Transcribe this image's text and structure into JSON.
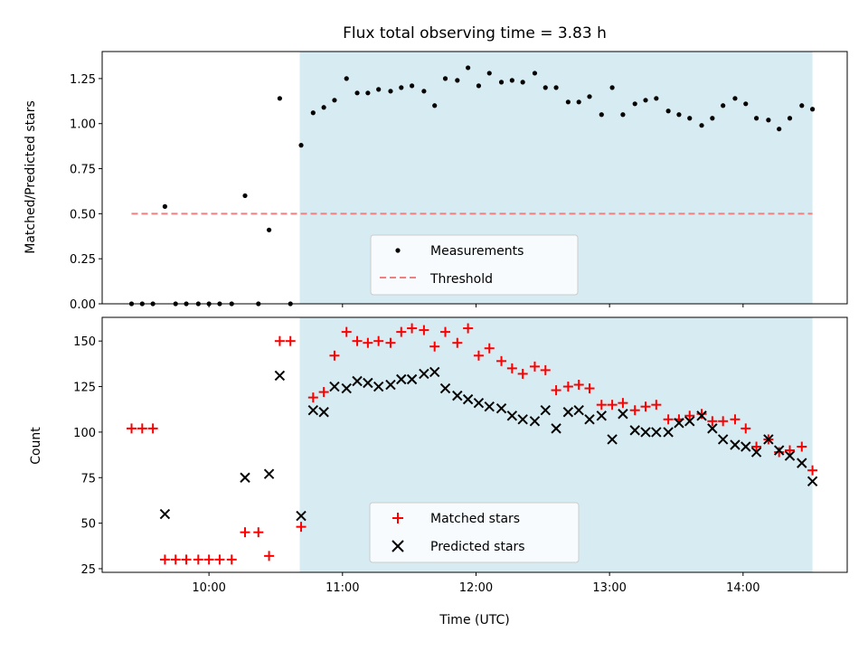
{
  "colors": {
    "shade": "#add8e6",
    "threshold": "#f08080",
    "measure": "#000000",
    "matched": "#ff0000",
    "predicted": "#000000"
  },
  "chart_data": [
    {
      "type": "scatter",
      "title": "Flux total observing time = 3.83 h",
      "ylabel": "Matched/Predicted stars",
      "xlabel": "",
      "xlim": [
        9.2,
        14.78
      ],
      "ylim": [
        0.0,
        1.4
      ],
      "ytick_values": [
        0.0,
        0.25,
        0.5,
        0.75,
        1.0,
        1.25
      ],
      "ytick_labels": [
        "0.00",
        "0.25",
        "0.50",
        "0.75",
        "1.00",
        "1.25"
      ],
      "xtick_values": [
        10,
        11,
        12,
        13,
        14
      ],
      "shaded_span": [
        10.68,
        14.52
      ],
      "threshold": {
        "name": "Threshold",
        "value": 0.5,
        "x_range": [
          9.42,
          14.52
        ]
      },
      "series": [
        {
          "name": "Measurements",
          "x": [
            9.42,
            9.5,
            9.58,
            9.67,
            9.75,
            9.83,
            9.92,
            10.0,
            10.08,
            10.17,
            10.27,
            10.37,
            10.45,
            10.53,
            10.61,
            10.69,
            10.78,
            10.86,
            10.94,
            11.03,
            11.11,
            11.19,
            11.27,
            11.36,
            11.44,
            11.52,
            11.61,
            11.69,
            11.77,
            11.86,
            11.94,
            12.02,
            12.1,
            12.19,
            12.27,
            12.35,
            12.44,
            12.52,
            12.6,
            12.69,
            12.77,
            12.85,
            12.94,
            13.02,
            13.1,
            13.19,
            13.27,
            13.35,
            13.44,
            13.52,
            13.6,
            13.69,
            13.77,
            13.85,
            13.94,
            14.02,
            14.1,
            14.19,
            14.27,
            14.35,
            14.44,
            14.52
          ],
          "y": [
            0.0,
            0.0,
            0.0,
            0.54,
            0.0,
            0.0,
            0.0,
            0.0,
            0.0,
            0.0,
            0.6,
            0.0,
            0.41,
            1.14,
            0.0,
            0.88,
            1.06,
            1.09,
            1.13,
            1.25,
            1.17,
            1.17,
            1.19,
            1.18,
            1.2,
            1.21,
            1.18,
            1.1,
            1.25,
            1.24,
            1.31,
            1.21,
            1.28,
            1.23,
            1.24,
            1.23,
            1.28,
            1.2,
            1.2,
            1.12,
            1.12,
            1.15,
            1.05,
            1.2,
            1.05,
            1.11,
            1.13,
            1.14,
            1.07,
            1.05,
            1.03,
            0.99,
            1.03,
            1.1,
            1.14,
            1.11,
            1.03,
            1.02,
            0.97,
            1.03,
            1.1,
            1.08
          ]
        }
      ],
      "legend": {
        "position": "lower-center",
        "entries": [
          "Measurements",
          "Threshold"
        ]
      }
    },
    {
      "type": "scatter",
      "title": "",
      "ylabel": "Count",
      "xlabel": "Time (UTC)",
      "xlim": [
        9.2,
        14.78
      ],
      "ylim": [
        23,
        163
      ],
      "ytick_values": [
        25,
        50,
        75,
        100,
        125,
        150
      ],
      "ytick_labels": [
        "25",
        "50",
        "75",
        "100",
        "125",
        "150"
      ],
      "xtick_values": [
        10,
        11,
        12,
        13,
        14
      ],
      "xtick_labels": [
        "10:00",
        "11:00",
        "12:00",
        "13:00",
        "14:00"
      ],
      "shaded_span": [
        10.68,
        14.52
      ],
      "series": [
        {
          "name": "Matched stars",
          "marker": "plus",
          "x": [
            9.42,
            9.5,
            9.58,
            9.67,
            9.75,
            9.83,
            9.92,
            10.0,
            10.08,
            10.17,
            10.27,
            10.37,
            10.45,
            10.53,
            10.61,
            10.69,
            10.78,
            10.86,
            10.94,
            11.03,
            11.11,
            11.19,
            11.27,
            11.36,
            11.44,
            11.52,
            11.61,
            11.69,
            11.77,
            11.86,
            11.94,
            12.02,
            12.1,
            12.19,
            12.27,
            12.35,
            12.44,
            12.52,
            12.6,
            12.69,
            12.77,
            12.85,
            12.94,
            13.02,
            13.1,
            13.19,
            13.27,
            13.35,
            13.44,
            13.52,
            13.6,
            13.69,
            13.77,
            13.85,
            13.94,
            14.02,
            14.1,
            14.19,
            14.27,
            14.35,
            14.44,
            14.52
          ],
          "y": [
            102,
            102,
            102,
            30,
            30,
            30,
            30,
            30,
            30,
            30,
            45,
            45,
            32,
            150,
            150,
            48,
            119,
            122,
            142,
            155,
            150,
            149,
            150,
            149,
            155,
            157,
            156,
            147,
            155,
            149,
            157,
            142,
            146,
            139,
            135,
            132,
            136,
            134,
            123,
            125,
            126,
            124,
            115,
            115,
            116,
            112,
            114,
            115,
            107,
            107,
            109,
            110,
            106,
            106,
            107,
            102,
            92,
            96,
            89,
            90,
            92,
            79
          ]
        },
        {
          "name": "Predicted stars",
          "marker": "x",
          "x": [
            9.67,
            10.27,
            10.45,
            10.53,
            10.69,
            10.78,
            10.86,
            10.94,
            11.03,
            11.11,
            11.19,
            11.27,
            11.36,
            11.44,
            11.52,
            11.61,
            11.69,
            11.77,
            11.86,
            11.94,
            12.02,
            12.1,
            12.19,
            12.27,
            12.35,
            12.44,
            12.52,
            12.6,
            12.69,
            12.77,
            12.85,
            12.94,
            13.02,
            13.1,
            13.19,
            13.27,
            13.35,
            13.44,
            13.52,
            13.6,
            13.69,
            13.77,
            13.85,
            13.94,
            14.02,
            14.1,
            14.19,
            14.27,
            14.35,
            14.44,
            14.52
          ],
          "y": [
            55,
            75,
            77,
            131,
            54,
            112,
            111,
            125,
            124,
            128,
            127,
            125,
            126,
            129,
            129,
            132,
            133,
            124,
            120,
            118,
            116,
            114,
            113,
            109,
            107,
            106,
            112,
            102,
            111,
            112,
            107,
            109,
            96,
            110,
            101,
            100,
            100,
            100,
            105,
            106,
            109,
            102,
            96,
            93,
            92,
            89,
            96,
            90,
            87,
            83,
            73
          ]
        }
      ],
      "legend": {
        "position": "lower-center",
        "entries": [
          "Matched stars",
          "Predicted stars"
        ]
      }
    }
  ]
}
